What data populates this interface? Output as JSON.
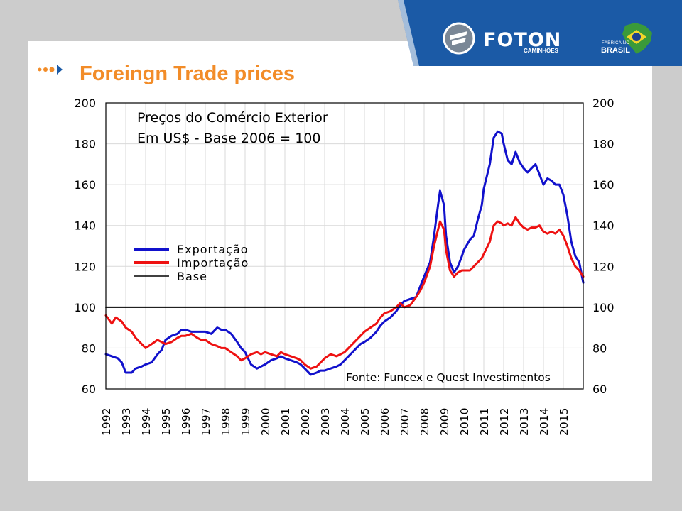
{
  "slide": {
    "title": "Foreingn Trade prices"
  },
  "brand": {
    "name": "FOTON",
    "sub": "CAMINHÕES",
    "badge_top": "FÁBRICA NO",
    "badge_bottom": "BRASIL"
  },
  "colors": {
    "background": "#cccccc",
    "title": "#f28c28",
    "header": "#1b5aa6",
    "export": "#1111cc",
    "import": "#ee1111",
    "base": "#000000",
    "grid": "#d9d9d9"
  },
  "icons": [
    "triple-dot-arrow-icon",
    "foton-logo-icon",
    "brazil-map-icon"
  ],
  "chart_data": {
    "type": "line",
    "title_lines": [
      "Preços do Comércio Exterior",
      "Em US$ - Base 2006 = 100"
    ],
    "source": "Fonte: Funcex e Quest Investimentos",
    "x_ticks": [
      "1992",
      "1993",
      "1994",
      "1995",
      "1996",
      "1997",
      "1998",
      "1999",
      "2000",
      "2001",
      "2002",
      "2003",
      "2004",
      "2005",
      "2006",
      "2007",
      "2008",
      "2009",
      "2010",
      "2011",
      "2012",
      "2013",
      "2014",
      "2015"
    ],
    "x_range": [
      1992.0,
      2016.0
    ],
    "ylim": [
      60,
      200
    ],
    "y_ticks": [
      60,
      80,
      100,
      120,
      140,
      160,
      180,
      200
    ],
    "y_axis_right": true,
    "grid": true,
    "legend": "center-left",
    "series": [
      {
        "name": "Exportação",
        "color": "#1111cc",
        "points": [
          [
            1992.0,
            77
          ],
          [
            1992.3,
            76
          ],
          [
            1992.6,
            75
          ],
          [
            1992.8,
            73
          ],
          [
            1993.0,
            68
          ],
          [
            1993.3,
            68
          ],
          [
            1993.5,
            70
          ],
          [
            1993.8,
            71
          ],
          [
            1994.0,
            72
          ],
          [
            1994.3,
            73
          ],
          [
            1994.6,
            77
          ],
          [
            1994.8,
            79
          ],
          [
            1995.0,
            84
          ],
          [
            1995.3,
            86
          ],
          [
            1995.6,
            87
          ],
          [
            1995.8,
            89
          ],
          [
            1996.0,
            89
          ],
          [
            1996.3,
            88
          ],
          [
            1996.6,
            88
          ],
          [
            1996.8,
            88
          ],
          [
            1997.0,
            88
          ],
          [
            1997.3,
            87
          ],
          [
            1997.6,
            90
          ],
          [
            1997.8,
            89
          ],
          [
            1998.0,
            89
          ],
          [
            1998.3,
            87
          ],
          [
            1998.6,
            83
          ],
          [
            1998.8,
            80
          ],
          [
            1999.0,
            78
          ],
          [
            1999.3,
            72
          ],
          [
            1999.6,
            70
          ],
          [
            1999.8,
            71
          ],
          [
            2000.0,
            72
          ],
          [
            2000.3,
            74
          ],
          [
            2000.6,
            75
          ],
          [
            2000.8,
            76
          ],
          [
            2001.0,
            75
          ],
          [
            2001.3,
            74
          ],
          [
            2001.6,
            73
          ],
          [
            2001.8,
            72
          ],
          [
            2002.0,
            70
          ],
          [
            2002.3,
            67
          ],
          [
            2002.6,
            68
          ],
          [
            2002.8,
            69
          ],
          [
            2003.0,
            69
          ],
          [
            2003.3,
            70
          ],
          [
            2003.6,
            71
          ],
          [
            2003.8,
            72
          ],
          [
            2004.0,
            74
          ],
          [
            2004.3,
            77
          ],
          [
            2004.6,
            80
          ],
          [
            2004.8,
            82
          ],
          [
            2005.0,
            83
          ],
          [
            2005.3,
            85
          ],
          [
            2005.6,
            88
          ],
          [
            2005.8,
            91
          ],
          [
            2006.0,
            93
          ],
          [
            2006.3,
            95
          ],
          [
            2006.6,
            98
          ],
          [
            2006.8,
            101
          ],
          [
            2007.0,
            103
          ],
          [
            2007.3,
            104
          ],
          [
            2007.6,
            105
          ],
          [
            2007.8,
            110
          ],
          [
            2008.0,
            115
          ],
          [
            2008.3,
            122
          ],
          [
            2008.5,
            135
          ],
          [
            2008.7,
            150
          ],
          [
            2008.8,
            157
          ],
          [
            2009.0,
            150
          ],
          [
            2009.1,
            135
          ],
          [
            2009.3,
            122
          ],
          [
            2009.5,
            117
          ],
          [
            2009.7,
            120
          ],
          [
            2009.9,
            125
          ],
          [
            2010.0,
            128
          ],
          [
            2010.3,
            133
          ],
          [
            2010.5,
            135
          ],
          [
            2010.7,
            143
          ],
          [
            2010.9,
            150
          ],
          [
            2011.0,
            158
          ],
          [
            2011.3,
            170
          ],
          [
            2011.5,
            183
          ],
          [
            2011.7,
            186
          ],
          [
            2011.9,
            185
          ],
          [
            2012.0,
            180
          ],
          [
            2012.2,
            172
          ],
          [
            2012.4,
            170
          ],
          [
            2012.6,
            176
          ],
          [
            2012.8,
            171
          ],
          [
            2013.0,
            168
          ],
          [
            2013.2,
            166
          ],
          [
            2013.4,
            168
          ],
          [
            2013.6,
            170
          ],
          [
            2013.8,
            165
          ],
          [
            2014.0,
            160
          ],
          [
            2014.2,
            163
          ],
          [
            2014.4,
            162
          ],
          [
            2014.6,
            160
          ],
          [
            2014.8,
            160
          ],
          [
            2015.0,
            155
          ],
          [
            2015.2,
            145
          ],
          [
            2015.4,
            132
          ],
          [
            2015.6,
            125
          ],
          [
            2015.8,
            122
          ],
          [
            2016.0,
            112
          ]
        ]
      },
      {
        "name": "Importação",
        "color": "#ee1111",
        "points": [
          [
            1992.0,
            96
          ],
          [
            1992.3,
            92
          ],
          [
            1992.5,
            95
          ],
          [
            1992.8,
            93
          ],
          [
            1993.0,
            90
          ],
          [
            1993.3,
            88
          ],
          [
            1993.5,
            85
          ],
          [
            1993.8,
            82
          ],
          [
            1994.0,
            80
          ],
          [
            1994.3,
            82
          ],
          [
            1994.6,
            84
          ],
          [
            1994.8,
            83
          ],
          [
            1995.0,
            82
          ],
          [
            1995.3,
            83
          ],
          [
            1995.6,
            85
          ],
          [
            1995.8,
            86
          ],
          [
            1996.0,
            86
          ],
          [
            1996.3,
            87
          ],
          [
            1996.6,
            85
          ],
          [
            1996.8,
            84
          ],
          [
            1997.0,
            84
          ],
          [
            1997.3,
            82
          ],
          [
            1997.6,
            81
          ],
          [
            1997.8,
            80
          ],
          [
            1998.0,
            80
          ],
          [
            1998.3,
            78
          ],
          [
            1998.6,
            76
          ],
          [
            1998.8,
            74
          ],
          [
            1999.0,
            75
          ],
          [
            1999.3,
            77
          ],
          [
            1999.6,
            78
          ],
          [
            1999.8,
            77
          ],
          [
            2000.0,
            78
          ],
          [
            2000.3,
            77
          ],
          [
            2000.6,
            76
          ],
          [
            2000.8,
            78
          ],
          [
            2001.0,
            77
          ],
          [
            2001.3,
            76
          ],
          [
            2001.6,
            75
          ],
          [
            2001.8,
            74
          ],
          [
            2002.0,
            72
          ],
          [
            2002.3,
            70
          ],
          [
            2002.6,
            71
          ],
          [
            2002.8,
            73
          ],
          [
            2003.0,
            75
          ],
          [
            2003.3,
            77
          ],
          [
            2003.6,
            76
          ],
          [
            2003.8,
            77
          ],
          [
            2004.0,
            78
          ],
          [
            2004.3,
            81
          ],
          [
            2004.6,
            84
          ],
          [
            2004.8,
            86
          ],
          [
            2005.0,
            88
          ],
          [
            2005.3,
            90
          ],
          [
            2005.6,
            92
          ],
          [
            2005.8,
            95
          ],
          [
            2006.0,
            97
          ],
          [
            2006.3,
            98
          ],
          [
            2006.6,
            100
          ],
          [
            2006.8,
            102
          ],
          [
            2007.0,
            100
          ],
          [
            2007.3,
            101
          ],
          [
            2007.6,
            105
          ],
          [
            2007.8,
            108
          ],
          [
            2008.0,
            112
          ],
          [
            2008.3,
            120
          ],
          [
            2008.5,
            130
          ],
          [
            2008.7,
            138
          ],
          [
            2008.8,
            142
          ],
          [
            2009.0,
            138
          ],
          [
            2009.1,
            128
          ],
          [
            2009.3,
            118
          ],
          [
            2009.5,
            115
          ],
          [
            2009.7,
            117
          ],
          [
            2009.9,
            118
          ],
          [
            2010.0,
            118
          ],
          [
            2010.3,
            118
          ],
          [
            2010.5,
            120
          ],
          [
            2010.7,
            122
          ],
          [
            2010.9,
            124
          ],
          [
            2011.0,
            126
          ],
          [
            2011.3,
            132
          ],
          [
            2011.5,
            140
          ],
          [
            2011.7,
            142
          ],
          [
            2011.9,
            141
          ],
          [
            2012.0,
            140
          ],
          [
            2012.2,
            141
          ],
          [
            2012.4,
            140
          ],
          [
            2012.6,
            144
          ],
          [
            2012.8,
            141
          ],
          [
            2013.0,
            139
          ],
          [
            2013.2,
            138
          ],
          [
            2013.4,
            139
          ],
          [
            2013.6,
            139
          ],
          [
            2013.8,
            140
          ],
          [
            2014.0,
            137
          ],
          [
            2014.2,
            136
          ],
          [
            2014.4,
            137
          ],
          [
            2014.6,
            136
          ],
          [
            2014.8,
            138
          ],
          [
            2015.0,
            135
          ],
          [
            2015.2,
            130
          ],
          [
            2015.4,
            124
          ],
          [
            2015.6,
            120
          ],
          [
            2015.8,
            118
          ],
          [
            2016.0,
            115
          ]
        ]
      },
      {
        "name": "Base",
        "color": "#000000",
        "points": [
          [
            1992.0,
            100
          ],
          [
            2016.0,
            100
          ]
        ]
      }
    ]
  }
}
